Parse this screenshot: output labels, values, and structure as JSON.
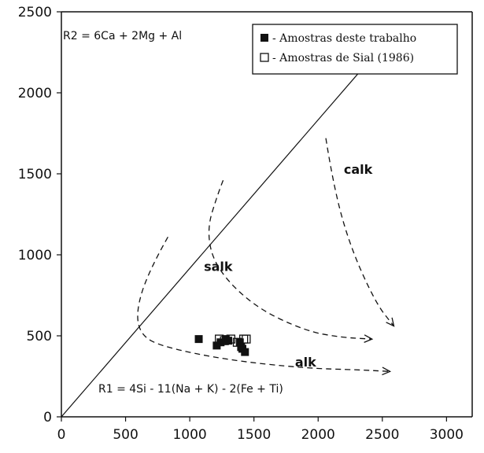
{
  "chart_data": {
    "type": "scatter",
    "xlim": [
      0,
      3200
    ],
    "ylim": [
      0,
      2500
    ],
    "x_ticks": [
      0,
      500,
      1000,
      1500,
      2000,
      2500,
      3000
    ],
    "y_ticks": [
      0,
      500,
      1000,
      1500,
      2000,
      2500
    ],
    "x_tick_labels": [
      "0",
      "500",
      "1000",
      "1500",
      "2000",
      "2500",
      "3000"
    ],
    "y_tick_labels": [
      "0",
      "500",
      "1000",
      "1500",
      "2000",
      "2500"
    ],
    "grid": false,
    "legend_placement": "top-right",
    "annotations": {
      "r2_formula": "R2 = 6Ca + 2Mg + Al",
      "r1_formula": "R1 = 4Si - 11(Na + K) - 2(Fe + Ti)"
    },
    "series": [
      {
        "name": "- Amostras deste trabalho",
        "marker": "filled-square",
        "x": [
          1070,
          1210,
          1240,
          1280,
          1300,
          1390,
          1400,
          1410,
          1430
        ],
        "y": [
          480,
          440,
          460,
          480,
          470,
          460,
          430,
          420,
          400
        ]
      },
      {
        "name": "- Amostras de Sial (1986)",
        "marker": "open-square",
        "x": [
          1230,
          1270,
          1320,
          1370,
          1420,
          1440
        ],
        "y": [
          480,
          470,
          480,
          460,
          480,
          480
        ]
      }
    ],
    "reference_line": {
      "x": [
        0,
        2400
      ],
      "y": [
        0,
        2200
      ]
    },
    "trends": [
      {
        "label": "calk",
        "x": [
          2060,
          2120,
          2250,
          2450,
          2590
        ],
        "y": [
          1720,
          1420,
          1050,
          700,
          560
        ]
      },
      {
        "label": "salk",
        "x": [
          1260,
          1220,
          1130,
          1200,
          1500,
          1900,
          2180,
          2420
        ],
        "y": [
          1460,
          1380,
          1150,
          920,
          680,
          530,
          490,
          480
        ]
      },
      {
        "label": "alk",
        "x": [
          830,
          680,
          580,
          620,
          800,
          1300,
          1900,
          2320,
          2560
        ],
        "y": [
          1110,
          900,
          650,
          500,
          430,
          350,
          300,
          290,
          280
        ]
      }
    ],
    "trend_label_positions": {
      "calk": [
        2200,
        1500
      ],
      "salk": [
        1110,
        900
      ],
      "alk": [
        1820,
        310
      ]
    }
  }
}
